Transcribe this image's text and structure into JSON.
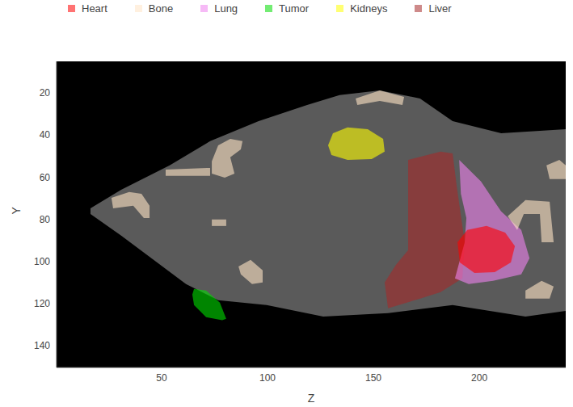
{
  "chart_data": {
    "type": "segmentation",
    "x_label": "Z",
    "y_label": "Y",
    "xlim": [
      0.4,
      240.8
    ],
    "ylim": [
      150.4,
      5
    ],
    "xticks": [
      50,
      100,
      150,
      200
    ],
    "yticks": [
      20,
      40,
      60,
      80,
      100,
      120,
      140
    ],
    "grid": false,
    "legend": "top",
    "background": {
      "color": "#000000"
    },
    "body": {
      "color": "#5a5a5a",
      "outline": [
        [
          16.4,
          74.8
        ],
        [
          30.9,
          66
        ],
        [
          53.8,
          54.4
        ],
        [
          72.9,
          42.9
        ],
        [
          95.8,
          33.4
        ],
        [
          118.7,
          25.7
        ],
        [
          134,
          21
        ],
        [
          153,
          18.8
        ],
        [
          172,
          22.6
        ],
        [
          187.4,
          33.4
        ],
        [
          210.3,
          39.1
        ],
        [
          240.8,
          37.2
        ],
        [
          240.8,
          123.5
        ],
        [
          221.8,
          126.2
        ],
        [
          187.4,
          120.8
        ],
        [
          156.9,
          124.6
        ],
        [
          126.3,
          126.2
        ],
        [
          99.6,
          120.8
        ],
        [
          76.7,
          118.5
        ],
        [
          61.5,
          110.8
        ],
        [
          46.2,
          99.3
        ],
        [
          30.9,
          87.8
        ],
        [
          16.4,
          77.5
        ]
      ]
    },
    "series": [
      {
        "name": "Heart",
        "color": "#ff0000",
        "regions": [
          [
            [
              189.7,
              90.9
            ],
            [
              194.3,
              85.1
            ],
            [
              203.4,
              83.2
            ],
            [
              212.2,
              86.3
            ],
            [
              216.8,
              92.8
            ],
            [
              214.9,
              100.5
            ],
            [
              207.3,
              105.1
            ],
            [
              197.7,
              105.5
            ],
            [
              190.8,
              100.5
            ]
          ]
        ]
      },
      {
        "name": "Bone",
        "color": "#ffe4c4",
        "regions": [
          [
            [
              73.7,
              52.5
            ],
            [
              76.7,
              44.9
            ],
            [
              82.4,
              41.8
            ],
            [
              88.2,
              42.9
            ],
            [
              87.4,
              46.8
            ],
            [
              82.4,
              50.6
            ],
            [
              84.4,
              58.3
            ],
            [
              79.8,
              60.2
            ],
            [
              73.7,
              58.3
            ]
          ],
          [
            [
              51.9,
              56.4
            ],
            [
              72.9,
              55.6
            ],
            [
              72.9,
              59.4
            ],
            [
              51.9,
              59.4
            ]
          ],
          [
            [
              26.3,
              69.8
            ],
            [
              34.7,
              67.1
            ],
            [
              40.5,
              67.9
            ],
            [
              44.3,
              73.6
            ],
            [
              44.3,
              79.4
            ],
            [
              41.6,
              79.4
            ],
            [
              36.6,
              73.6
            ],
            [
              27.1,
              74.8
            ]
          ],
          [
            [
              73.7,
              80.1
            ],
            [
              80.5,
              80.1
            ],
            [
              80.5,
              83.2
            ],
            [
              73.7,
              83.2
            ]
          ],
          [
            [
              86.3,
              102.4
            ],
            [
              92,
              99.3
            ],
            [
              97.7,
              104.3
            ],
            [
              97.7,
              110
            ],
            [
              92.7,
              110.8
            ],
            [
              87.4,
              106.2
            ]
          ],
          [
            [
              141.6,
              22.6
            ],
            [
              153,
              18.8
            ],
            [
              164.5,
              21.9
            ],
            [
              163.7,
              25.7
            ],
            [
              153,
              23.8
            ],
            [
              142.4,
              25.7
            ]
          ],
          [
            [
              231.7,
              54.4
            ],
            [
              237.8,
              51.8
            ],
            [
              240.8,
              54.4
            ],
            [
              240.8,
              60.9
            ],
            [
              233.2,
              60.9
            ]
          ],
          [
            [
              213.4,
              78.6
            ],
            [
              221.8,
              70.9
            ],
            [
              233.2,
              71.7
            ],
            [
              235.1,
              90.9
            ],
            [
              229.4,
              90.9
            ],
            [
              228.6,
              77.5
            ],
            [
              221,
              77.5
            ],
            [
              217.9,
              85.1
            ]
          ],
          [
            [
              221.8,
              113.9
            ],
            [
              229.4,
              109.3
            ],
            [
              235.1,
              111.9
            ],
            [
              233.2,
              117.7
            ],
            [
              221.8,
              117.7
            ]
          ]
        ]
      },
      {
        "name": "Lung",
        "color": "#ee82ee",
        "regions": [
          [
            [
              190.5,
              51.8
            ],
            [
              200.8,
              62.1
            ],
            [
              210.3,
              76.3
            ],
            [
              219.8,
              85.1
            ],
            [
              223.7,
              98.5
            ],
            [
              219.8,
              106.2
            ],
            [
              206.5,
              109.3
            ],
            [
              195,
              110.8
            ],
            [
              188.5,
              108.1
            ],
            [
              193.1,
              90.9
            ],
            [
              193.9,
              79.4
            ],
            [
              191.3,
              67.9
            ]
          ]
        ]
      },
      {
        "name": "Tumor",
        "color": "#00dd00",
        "regions": [
          [
            [
              65.3,
              113.1
            ],
            [
              71,
              113.9
            ],
            [
              77.5,
              119.6
            ],
            [
              80.5,
              127.3
            ],
            [
              78.6,
              128
            ],
            [
              71,
              126.5
            ],
            [
              65.3,
              120.8
            ],
            [
              64.5,
              115.8
            ]
          ]
        ]
      },
      {
        "name": "Kidneys",
        "color": "#ffff00",
        "regions": [
          [
            [
              128.6,
              44.9
            ],
            [
              130.9,
              39.1
            ],
            [
              137.8,
              36.4
            ],
            [
              147.3,
              37.2
            ],
            [
              154.6,
              41.8
            ],
            [
              155.3,
              47.9
            ],
            [
              149.2,
              51.4
            ],
            [
              137.8,
              51.8
            ],
            [
              130.2,
              49.5
            ]
          ]
        ]
      },
      {
        "name": "Liver",
        "color": "#a52a2a",
        "regions": [
          [
            [
              166.4,
              51.8
            ],
            [
              181.7,
              47.9
            ],
            [
              187.4,
              48.7
            ],
            [
              189.3,
              64.1
            ],
            [
              193.1,
              90.9
            ],
            [
              192,
              108.1
            ],
            [
              181.7,
              114.6
            ],
            [
              172.1,
              117.7
            ],
            [
              156.9,
              122.3
            ],
            [
              155.3,
              110
            ],
            [
              160.7,
              101.6
            ],
            [
              166.4,
              94.7
            ],
            [
              166.4,
              75.5
            ]
          ]
        ]
      }
    ]
  }
}
